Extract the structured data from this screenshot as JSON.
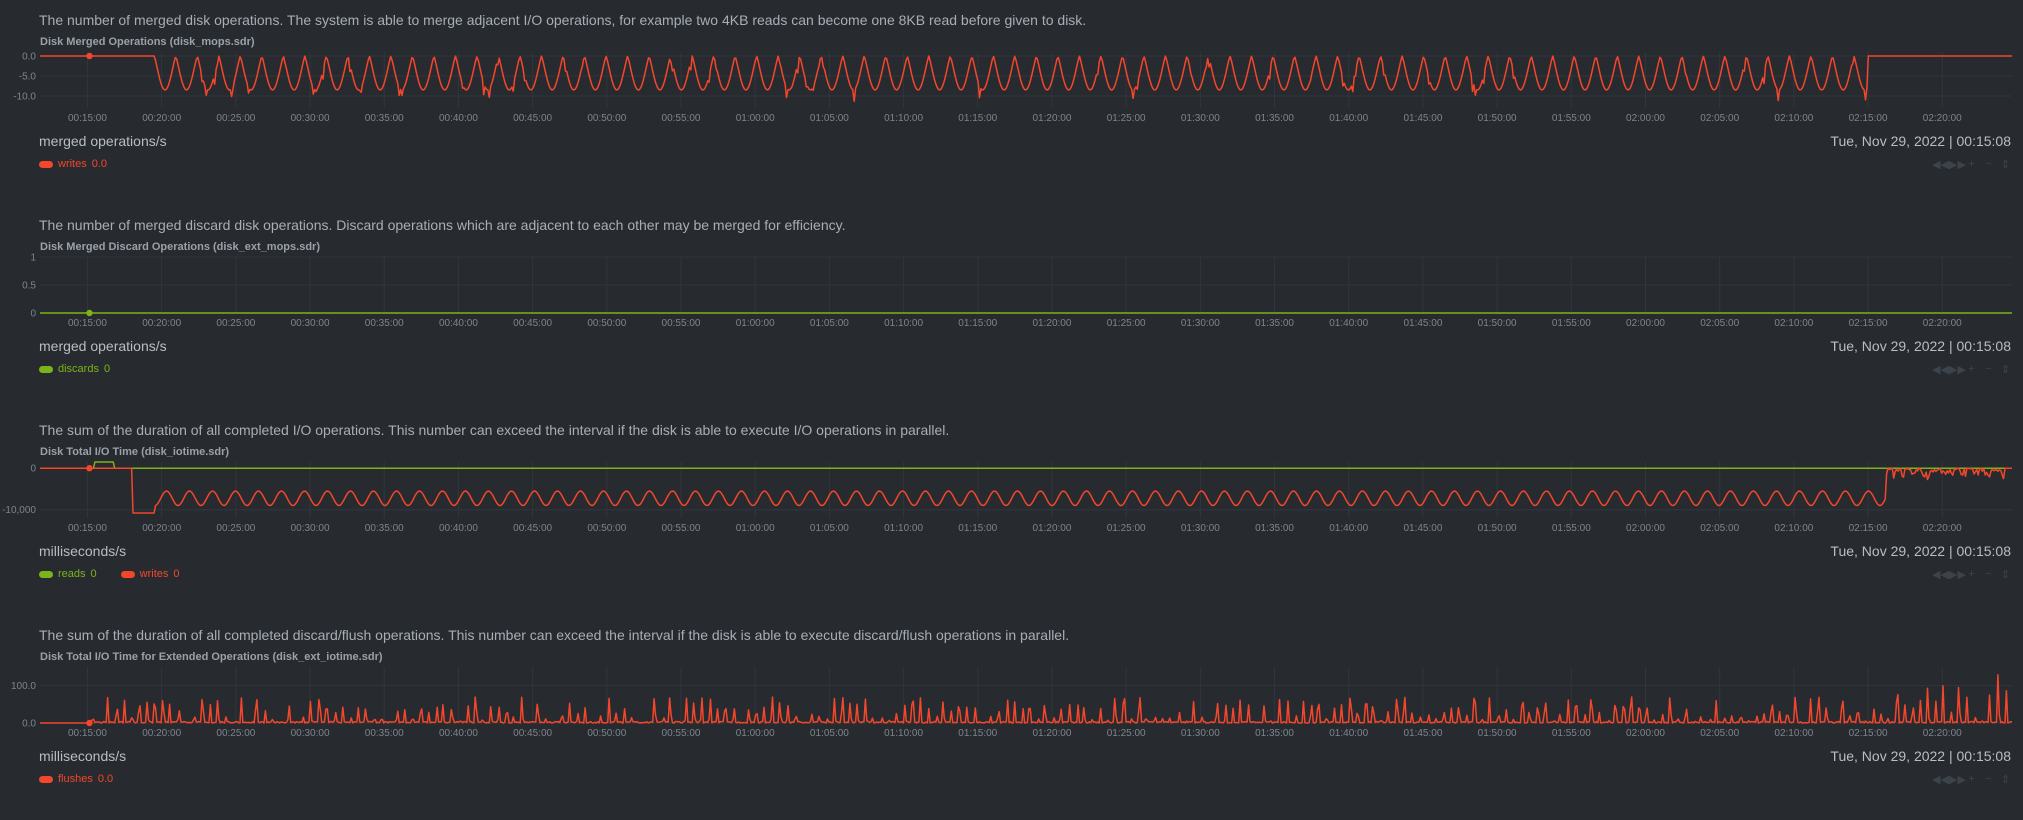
{
  "timestamp": "Tue, Nov 29, 2022 | 00:15:08",
  "tools": [
    {
      "icon": "rewind-icon",
      "glyph": "◀◀"
    },
    {
      "icon": "fast-forward-icon",
      "glyph": "▶▶"
    },
    {
      "icon": "zoom-in-icon",
      "glyph": "+"
    },
    {
      "icon": "zoom-out-icon",
      "glyph": "−"
    },
    {
      "icon": "resize-icon",
      "glyph": "⇕"
    }
  ],
  "chart_data": [
    {
      "type": "line",
      "description": "The number of merged disk operations. The system is able to merge adjacent I/O operations, for example two 4KB reads can become one 8KB read before given to disk.",
      "title": "Disk Merged Operations (disk_mops.sdr)",
      "units": "merged operations/s",
      "y_ticks": [
        "0.0",
        "-5.0",
        "-10.0"
      ],
      "ylim": [
        -13,
        1
      ],
      "x_ticks": [
        "00:15:00",
        "00:20:00",
        "00:25:00",
        "00:30:00",
        "00:35:00",
        "00:40:00",
        "00:45:00",
        "00:50:00",
        "00:55:00",
        "01:00:00",
        "01:05:00",
        "01:10:00",
        "01:15:00",
        "01:20:00",
        "01:25:00",
        "01:30:00",
        "01:35:00",
        "01:40:00",
        "01:45:00",
        "01:50:00",
        "01:55:00",
        "02:00:00",
        "02:05:00",
        "02:10:00",
        "02:15:00",
        "02:20:00"
      ],
      "xlim_minutes": [
        11.8,
        144.7
      ],
      "series": [
        {
          "name": "writes",
          "color": "#f4462a",
          "legend_value": "0.0",
          "pattern": {
            "start": 19.5,
            "end": 135.0,
            "period": 1.45,
            "low": -8.5,
            "deep": -11.5,
            "baseline": 0
          }
        }
      ]
    },
    {
      "type": "line",
      "description": "The number of merged discard disk operations. Discard operations which are adjacent to each other may be merged for efficiency.",
      "title": "Disk Merged Discard Operations (disk_ext_mops.sdr)",
      "units": "merged operations/s",
      "y_ticks": [
        "1",
        "0.5",
        "0"
      ],
      "ylim": [
        0,
        1
      ],
      "x_ticks": [
        "00:15:00",
        "00:20:00",
        "00:25:00",
        "00:30:00",
        "00:35:00",
        "00:40:00",
        "00:45:00",
        "00:50:00",
        "00:55:00",
        "01:00:00",
        "01:05:00",
        "01:10:00",
        "01:15:00",
        "01:20:00",
        "01:25:00",
        "01:30:00",
        "01:35:00",
        "01:40:00",
        "01:45:00",
        "01:50:00",
        "01:55:00",
        "02:00:00",
        "02:05:00",
        "02:10:00",
        "02:15:00",
        "02:20:00"
      ],
      "xlim_minutes": [
        11.8,
        144.7
      ],
      "series": [
        {
          "name": "discards",
          "color": "#7cb318",
          "legend_value": "0",
          "pattern": {
            "flat": 0
          }
        }
      ]
    },
    {
      "type": "line",
      "description": "The sum of the duration of all completed I/O operations. This number can exceed the interval if the disk is able to execute I/O operations in parallel.",
      "title": "Disk Total I/O Time (disk_iotime.sdr)",
      "units": "milliseconds/s",
      "y_ticks": [
        "0",
        "-10,000"
      ],
      "ylim": [
        -12000,
        1500
      ],
      "x_ticks": [
        "00:15:00",
        "00:20:00",
        "00:25:00",
        "00:30:00",
        "00:35:00",
        "00:40:00",
        "00:45:00",
        "00:50:00",
        "00:55:00",
        "01:00:00",
        "01:05:00",
        "01:10:00",
        "01:15:00",
        "01:20:00",
        "01:25:00",
        "01:30:00",
        "01:35:00",
        "01:40:00",
        "01:45:00",
        "01:50:00",
        "01:55:00",
        "02:00:00",
        "02:05:00",
        "02:10:00",
        "02:15:00",
        "02:20:00"
      ],
      "xlim_minutes": [
        11.8,
        144.7
      ],
      "series": [
        {
          "name": "reads",
          "color": "#7cb318",
          "legend_value": "0",
          "pattern": {
            "flat": 0,
            "bump_start": 15.5,
            "bump_end": 16.8,
            "bump": 1500
          }
        },
        {
          "name": "writes",
          "color": "#f4462a",
          "legend_value": "0",
          "pattern": {
            "start": 18.0,
            "end": 136.2,
            "period": 1.55,
            "low": -9000,
            "high": -5500,
            "tail_end": 144.2,
            "tail_low": -3000
          }
        }
      ]
    },
    {
      "type": "line",
      "description": "The sum of the duration of all completed discard/flush operations. This number can exceed the interval if the disk is able to execute discard/flush operations in parallel.",
      "title": "Disk Total I/O Time for Extended Operations (disk_ext_iotime.sdr)",
      "units": "milliseconds/s",
      "y_ticks": [
        "100.0",
        "0.0"
      ],
      "ylim": [
        0,
        150
      ],
      "x_ticks": [
        "00:15:00",
        "00:20:00",
        "00:25:00",
        "00:30:00",
        "00:35:00",
        "00:40:00",
        "00:45:00",
        "00:50:00",
        "00:55:00",
        "01:00:00",
        "01:05:00",
        "01:10:00",
        "01:15:00",
        "01:20:00",
        "01:25:00",
        "01:30:00",
        "01:35:00",
        "01:40:00",
        "01:45:00",
        "01:50:00",
        "01:55:00",
        "02:00:00",
        "02:05:00",
        "02:10:00",
        "02:15:00",
        "02:20:00"
      ],
      "xlim_minutes": [
        11.8,
        144.7
      ],
      "series": [
        {
          "name": "flushes",
          "color": "#f4462a",
          "legend_value": "0.0",
          "pattern": {
            "start": 15.0,
            "spikes_low_max": 70,
            "shift": 136.0,
            "spikes_high_max": 170
          }
        }
      ]
    }
  ]
}
